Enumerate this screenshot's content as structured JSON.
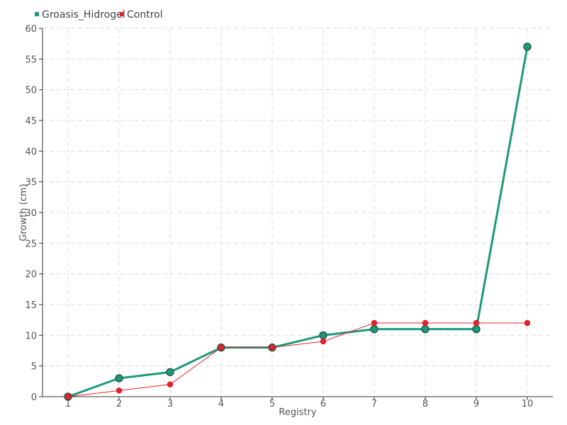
{
  "chart_data": {
    "type": "line",
    "xlabel": "Registry",
    "ylabel": "Growth (cm)",
    "categories": [
      "1",
      "2",
      "3",
      "4",
      "5",
      "6",
      "7",
      "8",
      "9",
      "10"
    ],
    "x": [
      1,
      2,
      3,
      4,
      5,
      6,
      7,
      8,
      9,
      10
    ],
    "xlim": [
      0.5,
      10.5
    ],
    "ylim": [
      0,
      60
    ],
    "yticks": [
      0,
      5,
      10,
      15,
      20,
      25,
      30,
      35,
      40,
      45,
      50,
      55,
      60
    ],
    "grid": true,
    "legend_position": "top-left",
    "series": [
      {
        "name": "Groasis_Hidrogel",
        "color": "#1a9a7a",
        "values": [
          0,
          3,
          4,
          8,
          8,
          10,
          11,
          11,
          11,
          57
        ]
      },
      {
        "name": "Control",
        "color": "#e8202a",
        "values": [
          0,
          1,
          2,
          8,
          8,
          9,
          12,
          12,
          12,
          12
        ]
      }
    ]
  }
}
